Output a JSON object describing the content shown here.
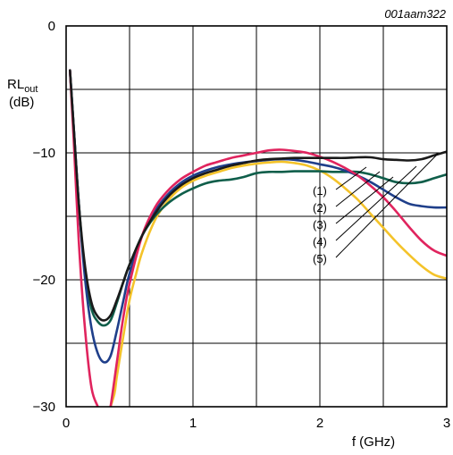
{
  "chart_data": {
    "type": "line",
    "figure_id": "001aam322",
    "xlabel": "f (GHz)",
    "ylabel_main": "RL",
    "ylabel_sub": "out",
    "ylabel_unit": "(dB)",
    "xlim": [
      0,
      3
    ],
    "ylim": [
      -30,
      0
    ],
    "x_ticks": [
      0,
      1,
      2,
      3
    ],
    "x_tick_labels": [
      "0",
      "1",
      "2",
      "3"
    ],
    "y_ticks": [
      0,
      -10,
      -20,
      -30
    ],
    "y_tick_labels": [
      "0",
      "−10",
      "−20",
      "−30"
    ],
    "x_grid": [
      0.5,
      1,
      1.5,
      2,
      2.5
    ],
    "y_grid": [
      -5,
      -10,
      -15,
      -20,
      -25
    ],
    "series": [
      {
        "name": "(1)",
        "color": "#1a1a1a",
        "x": [
          0.03,
          0.06,
          0.1,
          0.15,
          0.2,
          0.25,
          0.3,
          0.35,
          0.4,
          0.45,
          0.5,
          0.6,
          0.7,
          0.8,
          0.9,
          1.0,
          1.1,
          1.2,
          1.3,
          1.4,
          1.5,
          1.6,
          1.7,
          1.8,
          1.9,
          2.0,
          2.1,
          2.2,
          2.3,
          2.4,
          2.5,
          2.6,
          2.7,
          2.8,
          2.9,
          3.0
        ],
        "y": [
          -3.5,
          -8,
          -14,
          -19,
          -21.8,
          -22.9,
          -23.2,
          -22.8,
          -21.6,
          -20.2,
          -18.8,
          -16.5,
          -14.8,
          -13.5,
          -12.6,
          -12.0,
          -11.6,
          -11.3,
          -11.0,
          -10.8,
          -10.6,
          -10.5,
          -10.45,
          -10.4,
          -10.4,
          -10.4,
          -10.4,
          -10.4,
          -10.35,
          -10.35,
          -10.5,
          -10.55,
          -10.6,
          -10.5,
          -10.2,
          -9.9
        ]
      },
      {
        "name": "(2)",
        "color": "#1f3f8a",
        "x": [
          0.03,
          0.06,
          0.1,
          0.15,
          0.2,
          0.25,
          0.3,
          0.35,
          0.4,
          0.45,
          0.5,
          0.6,
          0.7,
          0.8,
          0.9,
          1.0,
          1.1,
          1.2,
          1.3,
          1.4,
          1.5,
          1.6,
          1.7,
          1.8,
          1.9,
          2.0,
          2.1,
          2.2,
          2.3,
          2.4,
          2.5,
          2.6,
          2.7,
          2.8,
          2.9,
          3.0
        ],
        "y": [
          -3.5,
          -8,
          -14,
          -20,
          -23.8,
          -25.8,
          -26.5,
          -26.0,
          -24.0,
          -21.7,
          -19.5,
          -16.5,
          -14.6,
          -13.3,
          -12.4,
          -11.8,
          -11.4,
          -11.1,
          -10.9,
          -10.75,
          -10.65,
          -10.55,
          -10.5,
          -10.55,
          -10.7,
          -10.9,
          -11.1,
          -11.4,
          -11.8,
          -12.3,
          -12.9,
          -13.5,
          -14.0,
          -14.2,
          -14.3,
          -14.3
        ]
      },
      {
        "name": "(3)",
        "color": "#0f5e4a",
        "x": [
          0.03,
          0.06,
          0.1,
          0.15,
          0.2,
          0.25,
          0.3,
          0.35,
          0.4,
          0.45,
          0.5,
          0.6,
          0.7,
          0.8,
          0.9,
          1.0,
          1.1,
          1.2,
          1.3,
          1.4,
          1.5,
          1.6,
          1.7,
          1.8,
          1.9,
          2.0,
          2.1,
          2.2,
          2.3,
          2.4,
          2.5,
          2.6,
          2.7,
          2.8,
          2.9,
          3.0
        ],
        "y": [
          -3.5,
          -8,
          -14,
          -19.5,
          -22.3,
          -23.3,
          -23.6,
          -23.2,
          -21.8,
          -20.2,
          -18.8,
          -16.5,
          -15.0,
          -14.0,
          -13.3,
          -12.8,
          -12.4,
          -12.2,
          -12.1,
          -11.9,
          -11.6,
          -11.5,
          -11.5,
          -11.45,
          -11.45,
          -11.45,
          -11.5,
          -11.5,
          -11.5,
          -11.7,
          -12.0,
          -12.3,
          -12.4,
          -12.3,
          -12.0,
          -11.7
        ]
      },
      {
        "name": "(4)",
        "color": "#e0245e",
        "x": [
          0.03,
          0.06,
          0.1,
          0.15,
          0.2,
          0.25,
          0.27,
          0.33,
          0.35,
          0.4,
          0.45,
          0.5,
          0.6,
          0.7,
          0.8,
          0.9,
          1.0,
          1.1,
          1.2,
          1.3,
          1.4,
          1.5,
          1.6,
          1.7,
          1.8,
          1.9,
          2.0,
          2.1,
          2.2,
          2.3,
          2.4,
          2.5,
          2.6,
          2.7,
          2.8,
          2.9,
          3.0
        ],
        "y": [
          -3.5,
          -9,
          -17,
          -24,
          -28.5,
          -30,
          -30.6,
          -30.6,
          -30,
          -26.5,
          -23.0,
          -20.3,
          -16.5,
          -14.3,
          -13.0,
          -12.1,
          -11.5,
          -11.0,
          -10.7,
          -10.4,
          -10.2,
          -10.0,
          -9.8,
          -9.75,
          -9.85,
          -10.0,
          -10.3,
          -10.7,
          -11.2,
          -11.8,
          -12.6,
          -13.5,
          -14.6,
          -15.8,
          -16.9,
          -17.7,
          -18.1
        ]
      },
      {
        "name": "(5)",
        "color": "#f4c32a",
        "x": [
          0.33,
          0.38,
          0.4,
          0.45,
          0.5,
          0.55,
          0.6,
          0.7,
          0.8,
          0.9,
          1.0,
          1.1,
          1.2,
          1.3,
          1.4,
          1.5,
          1.6,
          1.7,
          1.8,
          1.9,
          2.0,
          2.1,
          2.2,
          2.3,
          2.4,
          2.5,
          2.6,
          2.7,
          2.8,
          2.9,
          3.0
        ],
        "y": [
          -30.6,
          -29.0,
          -27.6,
          -24.5,
          -21.6,
          -19.6,
          -17.8,
          -15.3,
          -13.8,
          -12.8,
          -12.2,
          -11.8,
          -11.5,
          -11.2,
          -11.0,
          -10.85,
          -10.75,
          -10.7,
          -10.8,
          -11.0,
          -11.4,
          -12.0,
          -12.8,
          -13.7,
          -14.8,
          -15.9,
          -17.0,
          -18.0,
          -18.9,
          -19.6,
          -19.9
        ]
      }
    ],
    "legend_labels": [
      "(1)",
      "(2)",
      "(3)",
      "(4)",
      "(5)"
    ]
  }
}
